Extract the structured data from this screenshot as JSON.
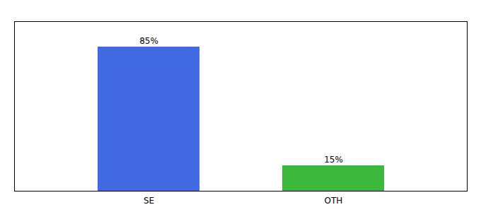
{
  "chart_data": {
    "type": "bar",
    "categories": [
      "SE",
      "OTH"
    ],
    "values": [
      85,
      15
    ],
    "value_labels": [
      "85%",
      "15%"
    ],
    "colors": [
      "#4169e1",
      "#3cb93c"
    ],
    "ylim": [
      0,
      100
    ],
    "data_labels": true,
    "tick_labels": "x",
    "grid": false
  }
}
